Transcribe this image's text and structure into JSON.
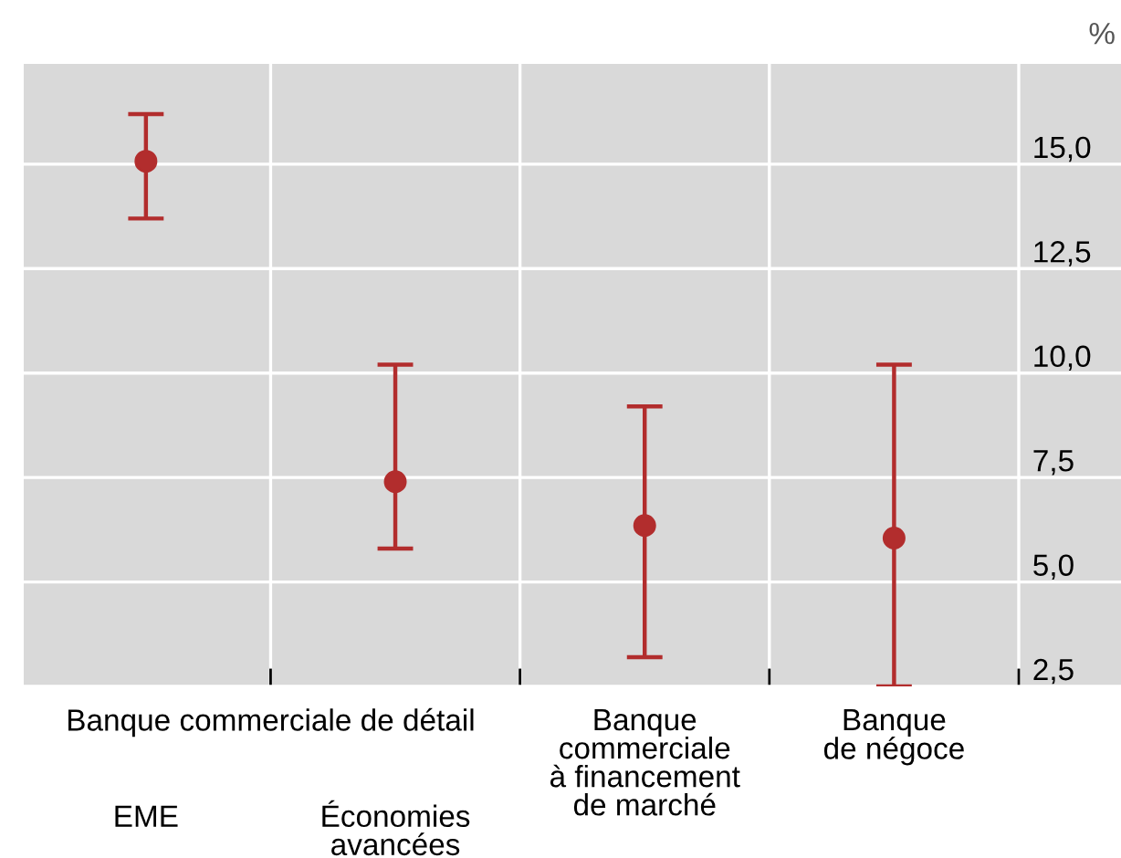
{
  "chart_data": {
    "type": "scatter",
    "ylabel": "%",
    "categories": [
      "EME",
      "Économies\navancées",
      "Banque\ncommerciale\nà financement\nde marché",
      "Banque\nde négoce"
    ],
    "values": [
      15.07,
      7.4,
      6.35,
      6.05
    ],
    "errors": [
      [
        13.7,
        16.2
      ],
      [
        5.8,
        10.2
      ],
      [
        3.2,
        9.2
      ],
      [
        2.5,
        10.2
      ]
    ],
    "color": "#b22d2d",
    "marker": "circle",
    "ylim": [
      2.5,
      17.4
    ],
    "yticks": [
      {
        "value": 2.5,
        "label": "2,5"
      },
      {
        "value": 5,
        "label": "5,0"
      },
      {
        "value": 7.5,
        "label": "7,5"
      },
      {
        "value": 10,
        "label": "10,0"
      },
      {
        "value": 12.5,
        "label": "12,5"
      },
      {
        "value": 15,
        "label": "15,0"
      }
    ],
    "grid": true,
    "annotations": [
      "Banque commerciale de détail"
    ]
  }
}
